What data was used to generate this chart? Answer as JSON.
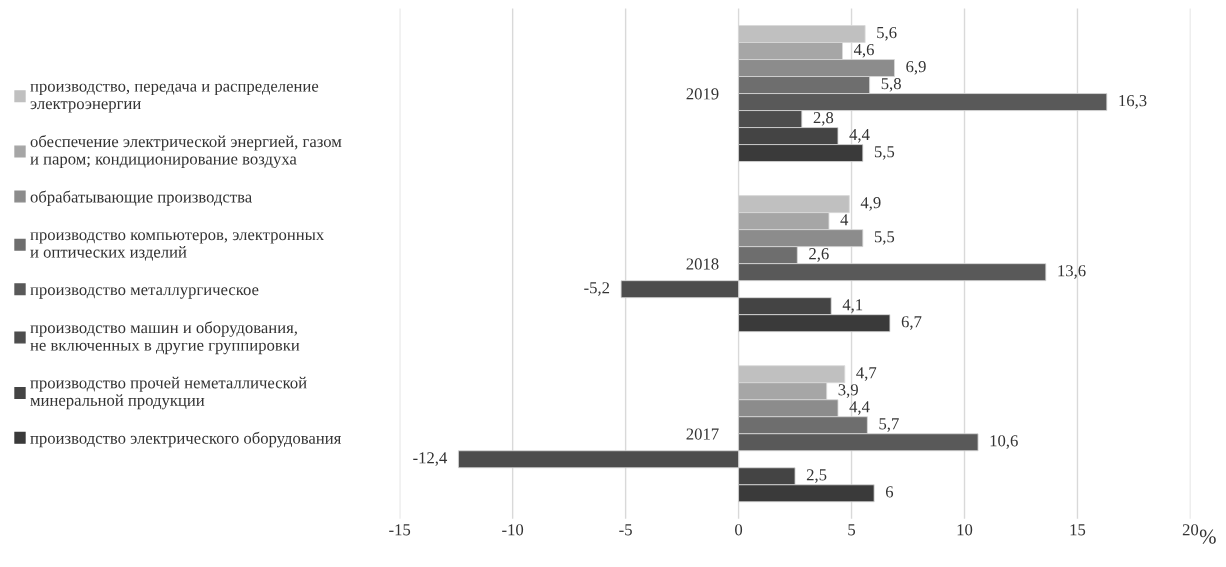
{
  "chart_data": {
    "type": "bar",
    "orientation": "horizontal",
    "categories": [
      "2019",
      "2018",
      "2017"
    ],
    "series": [
      {
        "name": "производство, передача и распределение\nэлектроэнергии",
        "color": "#c0c0c0",
        "values": [
          5.6,
          4.9,
          4.7
        ],
        "value_labels": [
          "5,6",
          "4,9",
          "4,7"
        ]
      },
      {
        "name": "обеспечение электрической энергией, газом\nи паром; кондиционирование воздуха",
        "color": "#a6a6a6",
        "values": [
          4.6,
          4,
          3.9
        ],
        "value_labels": [
          "4,6",
          "4",
          "3,9"
        ]
      },
      {
        "name": "обрабатывающие производства",
        "color": "#8c8c8c",
        "values": [
          6.9,
          5.5,
          4.4
        ],
        "value_labels": [
          "6,9",
          "5,5",
          "4,4"
        ]
      },
      {
        "name": "производство компьютеров, электронных\nи оптических изделий",
        "color": "#6e6e6e",
        "values": [
          5.8,
          2.6,
          5.7
        ],
        "value_labels": [
          "5,8",
          "2,6",
          "5,7"
        ]
      },
      {
        "name": "производство металлургическое",
        "color": "#595959",
        "values": [
          16.3,
          13.6,
          10.6
        ],
        "value_labels": [
          "16,3",
          "13,6",
          "10,6"
        ]
      },
      {
        "name": "производство машин и оборудования,\nне включенных в другие группировки",
        "color": "#4d4d4d",
        "values": [
          2.8,
          -5.2,
          -12.4
        ],
        "value_labels": [
          "2,8",
          "-5,2",
          "-12,4"
        ]
      },
      {
        "name": "производство прочей неметаллической\nминеральной продукции",
        "color": "#444444",
        "values": [
          4.4,
          4.1,
          2.5
        ],
        "value_labels": [
          "4,4",
          "4,1",
          "2,5"
        ]
      },
      {
        "name": "производство электрического оборудования",
        "color": "#3a3a3a",
        "values": [
          5.5,
          6.7,
          6
        ],
        "value_labels": [
          "5,5",
          "6,7",
          "6"
        ]
      }
    ],
    "xlim": [
      -15,
      20
    ],
    "xticks": [
      -15,
      -10,
      -5,
      0,
      5,
      10,
      15,
      20
    ],
    "xlabel": "%",
    "grid": "x",
    "legend": "left"
  }
}
